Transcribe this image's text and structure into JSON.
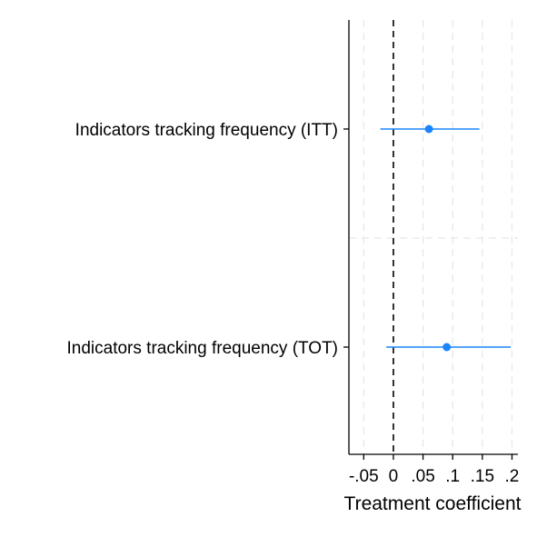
{
  "chart_data": {
    "type": "coefficient-plot",
    "orientation": "horizontal",
    "title": "",
    "xlabel": "Treatment coefficient",
    "ylabel": "",
    "xlim": [
      -0.075,
      0.21
    ],
    "x_ticks": [
      -0.05,
      0,
      0.05,
      0.1,
      0.15,
      0.2
    ],
    "x_tick_labels": [
      "-.05",
      "0",
      ".05",
      ".1",
      ".15",
      ".2"
    ],
    "reference_line": {
      "x": 0,
      "style": "dashed",
      "color": "#000000"
    },
    "grid": {
      "vertical": true,
      "style": "dashed",
      "color": "#e6e6e6"
    },
    "series_color": "#1a85ff",
    "categories": [
      "Indicators tracking frequency (ITT)",
      "Indicators tracking frequency (TOT)"
    ],
    "estimates": [
      {
        "label": "Indicators tracking frequency (ITT)",
        "coef": 0.06,
        "ci_low": -0.022,
        "ci_high": 0.145
      },
      {
        "label": "Indicators tracking frequency (TOT)",
        "coef": 0.09,
        "ci_low": -0.012,
        "ci_high": 0.198
      }
    ]
  }
}
